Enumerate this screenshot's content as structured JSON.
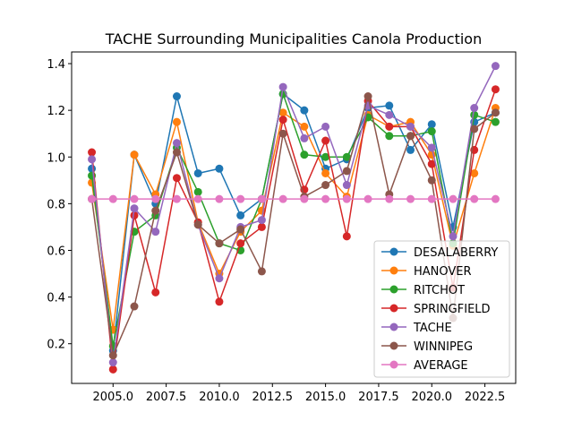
{
  "chart_data": {
    "type": "line",
    "title": "TACHE Surrounding Municipalities Canola Production",
    "xlabel": "",
    "ylabel": "",
    "xlim": [
      2003.05,
      2023.95
    ],
    "ylim": [
      0.03,
      1.45
    ],
    "xticks": [
      2005.0,
      2007.5,
      2010.0,
      2012.5,
      2015.0,
      2017.5,
      2020.0,
      2022.5
    ],
    "xtick_labels": [
      "2005.0",
      "2007.5",
      "2010.0",
      "2012.5",
      "2015.0",
      "2017.5",
      "2020.0",
      "2022.5"
    ],
    "yticks": [
      0.2,
      0.4,
      0.6,
      0.8,
      1.0,
      1.2,
      1.4
    ],
    "ytick_labels": [
      "0.2",
      "0.4",
      "0.6",
      "0.8",
      "1.0",
      "1.2",
      "1.4"
    ],
    "grid": false,
    "legend_position": "lower-right",
    "x": [
      2004,
      2005,
      2006,
      2007,
      2008,
      2009,
      2010,
      2011,
      2012,
      2013,
      2014,
      2015,
      2016,
      2017,
      2018,
      2019,
      2020,
      2021,
      2022,
      2023
    ],
    "series": [
      {
        "name": "DESALABERRY",
        "color": "#1f77b4",
        "values": [
          0.95,
          0.17,
          1.01,
          0.8,
          1.26,
          0.93,
          0.95,
          0.75,
          0.82,
          1.27,
          1.2,
          0.95,
          0.99,
          1.21,
          1.22,
          1.03,
          1.14,
          0.7,
          1.15,
          1.19
        ]
      },
      {
        "name": "HANOVER",
        "color": "#ff7f0e",
        "values": [
          0.89,
          0.26,
          1.01,
          0.84,
          1.15,
          0.72,
          0.5,
          0.68,
          0.77,
          1.19,
          1.13,
          0.93,
          0.83,
          1.18,
          1.13,
          1.15,
          1.01,
          0.62,
          0.93,
          1.21
        ]
      },
      {
        "name": "RITCHOT",
        "color": "#2ca02c",
        "values": [
          0.92,
          0.19,
          0.68,
          0.75,
          1.04,
          0.85,
          0.63,
          0.6,
          0.82,
          1.27,
          1.01,
          1.0,
          1.0,
          1.17,
          1.09,
          1.09,
          1.11,
          0.63,
          1.18,
          1.15
        ]
      },
      {
        "name": "SPRINGFIELD",
        "color": "#d62728",
        "values": [
          1.02,
          0.09,
          0.75,
          0.42,
          0.91,
          0.72,
          0.38,
          0.63,
          0.7,
          1.16,
          0.86,
          1.07,
          0.66,
          1.24,
          1.13,
          1.13,
          0.97,
          0.44,
          1.03,
          1.29
        ]
      },
      {
        "name": "TACHE",
        "color": "#9467bd",
        "values": [
          0.99,
          0.12,
          0.78,
          0.68,
          1.06,
          0.71,
          0.48,
          0.7,
          0.73,
          1.3,
          1.08,
          1.13,
          0.88,
          1.22,
          1.18,
          1.13,
          1.04,
          0.66,
          1.21,
          1.39
        ]
      },
      {
        "name": "WINNIPEG",
        "color": "#8c564b",
        "values": [
          0.82,
          0.15,
          0.36,
          0.77,
          1.02,
          0.71,
          0.63,
          0.69,
          0.51,
          1.1,
          0.83,
          0.88,
          0.94,
          1.26,
          0.84,
          1.09,
          0.9,
          0.31,
          1.12,
          1.19
        ]
      },
      {
        "name": "AVERAGE",
        "color": "#e377c2",
        "values": [
          0.82,
          0.82,
          0.82,
          0.82,
          0.82,
          0.82,
          0.82,
          0.82,
          0.82,
          0.82,
          0.82,
          0.82,
          0.82,
          0.82,
          0.82,
          0.82,
          0.82,
          0.82,
          0.82,
          0.82
        ]
      }
    ]
  }
}
